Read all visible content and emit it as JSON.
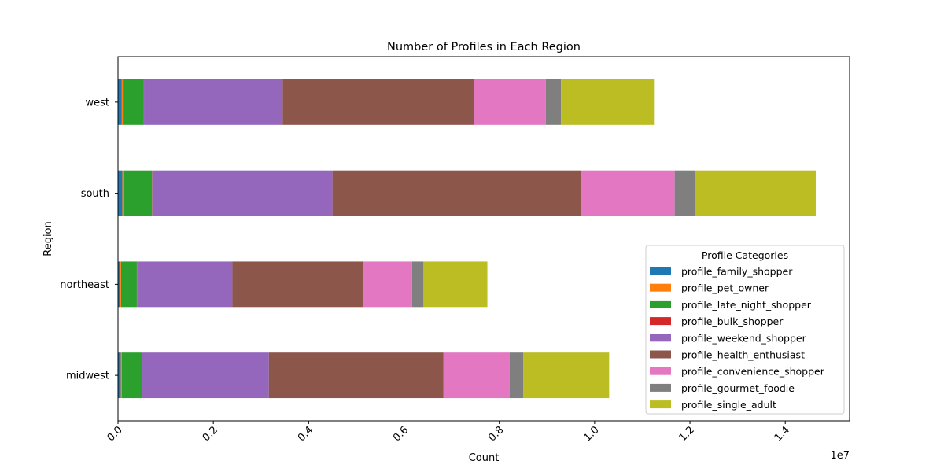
{
  "chart_data": {
    "type": "bar",
    "orientation": "horizontal",
    "stacked": true,
    "title": "Number of Profiles in Each Region",
    "xlabel": "Count",
    "ylabel": "Region",
    "x_scale_label": "1e7",
    "x_ticks": [
      "0.0",
      "0.2",
      "0.4",
      "0.6",
      "0.8",
      "1.0",
      "1.2",
      "1.4"
    ],
    "x_tick_values": [
      0,
      2000000,
      4000000,
      6000000,
      8000000,
      10000000,
      12000000,
      14000000
    ],
    "xlim": [
      0,
      15350000
    ],
    "categories": [
      "midwest",
      "northeast",
      "south",
      "west"
    ],
    "grid": false,
    "legend": {
      "title": "Profile Categories",
      "position": "lower right"
    },
    "series": [
      {
        "name": "profile_family_shopper",
        "color": "#1f77b4",
        "values": [
          60000,
          50000,
          90000,
          80000
        ]
      },
      {
        "name": "profile_pet_owner",
        "color": "#ff7f0e",
        "values": [
          20000,
          15000,
          25000,
          20000
        ]
      },
      {
        "name": "profile_late_night_shopper",
        "color": "#2ca02c",
        "values": [
          420000,
          330000,
          600000,
          440000
        ]
      },
      {
        "name": "profile_bulk_shopper",
        "color": "#d62728",
        "values": [
          5000,
          5000,
          5000,
          5000
        ]
      },
      {
        "name": "profile_weekend_shopper",
        "color": "#9467bd",
        "values": [
          2660000,
          2000000,
          3780000,
          2910000
        ]
      },
      {
        "name": "profile_health_enthusiast",
        "color": "#8c564b",
        "values": [
          3660000,
          2740000,
          5220000,
          4010000
        ]
      },
      {
        "name": "profile_convenience_shopper",
        "color": "#e377c2",
        "values": [
          1390000,
          1030000,
          1960000,
          1510000
        ]
      },
      {
        "name": "profile_gourmet_foodie",
        "color": "#7f7f7f",
        "values": [
          290000,
          240000,
          420000,
          320000
        ]
      },
      {
        "name": "profile_single_adult",
        "color": "#bcbd22",
        "values": [
          1800000,
          1340000,
          2540000,
          1950000
        ]
      }
    ]
  }
}
